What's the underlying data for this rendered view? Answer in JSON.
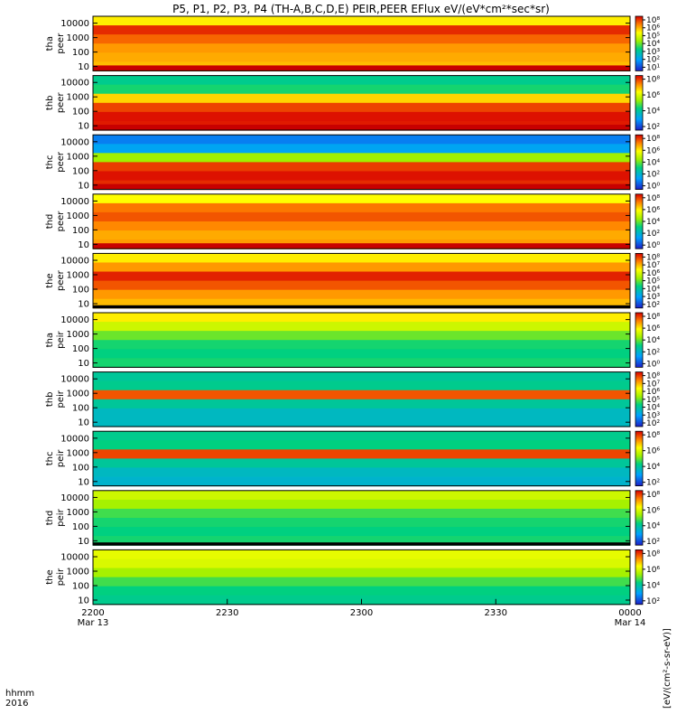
{
  "chart_data": {
    "type": "heatmap",
    "title": "P5, P1, P2, P3, P4 (TH-A,B,C,D,E) PEIR,PEER EFlux eV/(eV*cm²*sec*sr)",
    "x_label_row1": "hhmm",
    "x_label_row2": "2016",
    "x_ticks": [
      {
        "label": "2200",
        "sub": "Mar 13"
      },
      {
        "label": "2230",
        "sub": ""
      },
      {
        "label": "2300",
        "sub": ""
      },
      {
        "label": "2330",
        "sub": ""
      },
      {
        "label": "0000",
        "sub": "Mar 14"
      }
    ],
    "y_scale": "log",
    "y_ticks": [
      "10000",
      "1000",
      "100",
      "10"
    ],
    "colorbar_label": "[eV/(cm²-s-sr-eV)]",
    "panels": [
      {
        "label": "tha peer",
        "ylim": [
          5,
          30000
        ],
        "cbar_ticks": [
          "10⁸",
          "10⁶",
          "10⁵",
          "10⁴",
          "10³",
          "10²",
          "10¹"
        ],
        "band_intensity": [
          0.72,
          0.95,
          0.88,
          0.82,
          0.8,
          0.78
        ],
        "bottom_band": "red"
      },
      {
        "label": "thb peer",
        "ylim": [
          5,
          30000
        ],
        "cbar_ticks": [
          "10⁸",
          "10⁶",
          "10⁴",
          "10²"
        ],
        "band_intensity": [
          0.38,
          0.42,
          0.75,
          0.92,
          0.98,
          0.97
        ],
        "bottom_band": "red"
      },
      {
        "label": "thc peer",
        "ylim": [
          5,
          30000
        ],
        "cbar_ticks": [
          "10⁸",
          "10⁶",
          "10⁴",
          "10²",
          "10⁰"
        ],
        "band_intensity": [
          0.15,
          0.22,
          0.55,
          0.93,
          0.98,
          0.95
        ],
        "bottom_band": "red"
      },
      {
        "label": "thd peer",
        "ylim": [
          5,
          30000
        ],
        "cbar_ticks": [
          "10⁸",
          "10⁶",
          "10⁴",
          "10²",
          "10⁰"
        ],
        "band_intensity": [
          0.7,
          0.86,
          0.9,
          0.84,
          0.8,
          0.82
        ],
        "bottom_band": "red"
      },
      {
        "label": "the peer",
        "ylim": [
          5,
          30000
        ],
        "cbar_ticks": [
          "10⁸",
          "10⁷",
          "10⁶",
          "10⁵",
          "10⁴",
          "10³",
          "10²"
        ],
        "band_intensity": [
          0.72,
          0.82,
          0.96,
          0.9,
          0.82,
          0.78
        ],
        "bottom_band": "black"
      },
      {
        "label": "tha peir",
        "ylim": [
          5,
          30000
        ],
        "cbar_ticks": [
          "10⁸",
          "10⁶",
          "10⁴",
          "10²",
          "10⁰"
        ],
        "band_intensity": [
          0.72,
          0.62,
          0.5,
          0.42,
          0.4,
          0.42
        ],
        "bottom_band": "none"
      },
      {
        "label": "thb peir",
        "ylim": [
          5,
          30000
        ],
        "cbar_ticks": [
          "10⁸",
          "10⁷",
          "10⁶",
          "10⁵",
          "10⁴",
          "10³",
          "10²"
        ],
        "band_intensity": [
          0.36,
          0.38,
          0.9,
          0.36,
          0.3,
          0.3
        ],
        "bottom_band": "none"
      },
      {
        "label": "thc peir",
        "ylim": [
          5,
          30000
        ],
        "cbar_ticks": [
          "10⁸",
          "10⁶",
          "10⁴",
          "10²"
        ],
        "band_intensity": [
          0.38,
          0.4,
          0.92,
          0.36,
          0.3,
          0.28
        ],
        "bottom_band": "none"
      },
      {
        "label": "thd peir",
        "ylim": [
          5,
          30000
        ],
        "cbar_ticks": [
          "10⁸",
          "10⁶",
          "10⁴",
          "10²"
        ],
        "band_intensity": [
          0.62,
          0.56,
          0.46,
          0.42,
          0.4,
          0.42
        ],
        "bottom_band": "black"
      },
      {
        "label": "the peir",
        "ylim": [
          5,
          30000
        ],
        "cbar_ticks": [
          "10⁸",
          "10⁶",
          "10⁴",
          "10²"
        ],
        "band_intensity": [
          0.66,
          0.64,
          0.56,
          0.46,
          0.4,
          0.38
        ],
        "bottom_band": "none"
      }
    ]
  }
}
